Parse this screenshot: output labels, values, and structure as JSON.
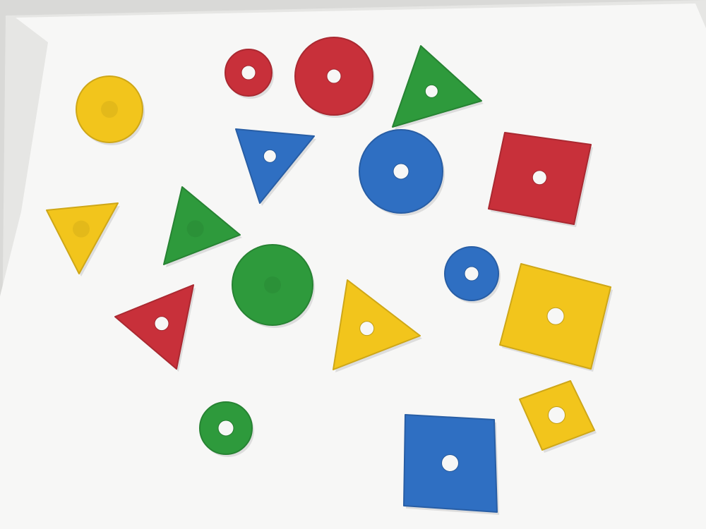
{
  "colors": {
    "background": "#d9d9d7",
    "paper": "#f7f7f6",
    "paper_shadow": "#e6e6e4",
    "red": "#c8303a",
    "green": "#2e9a3c",
    "blue": "#2f6fc2",
    "yellow": "#f2c51c"
  },
  "shapes": [
    {
      "kind": "circle",
      "color": "yellow",
      "hole": false
    },
    {
      "kind": "circle",
      "color": "red",
      "hole": true
    },
    {
      "kind": "circle",
      "color": "red",
      "hole": true
    },
    {
      "kind": "triangle",
      "color": "green",
      "hole": true
    },
    {
      "kind": "triangle",
      "color": "blue",
      "hole": true
    },
    {
      "kind": "circle",
      "color": "blue",
      "hole": true
    },
    {
      "kind": "square",
      "color": "red",
      "hole": true
    },
    {
      "kind": "triangle",
      "color": "yellow",
      "hole": false
    },
    {
      "kind": "triangle",
      "color": "green",
      "hole": false
    },
    {
      "kind": "circle",
      "color": "green",
      "hole": false
    },
    {
      "kind": "circle",
      "color": "blue",
      "hole": true
    },
    {
      "kind": "square",
      "color": "yellow",
      "hole": true
    },
    {
      "kind": "triangle",
      "color": "red",
      "hole": true
    },
    {
      "kind": "triangle",
      "color": "yellow",
      "hole": true
    },
    {
      "kind": "circle",
      "color": "green",
      "hole": true
    },
    {
      "kind": "square",
      "color": "yellow",
      "hole": true
    },
    {
      "kind": "square",
      "color": "blue",
      "hole": true
    }
  ]
}
